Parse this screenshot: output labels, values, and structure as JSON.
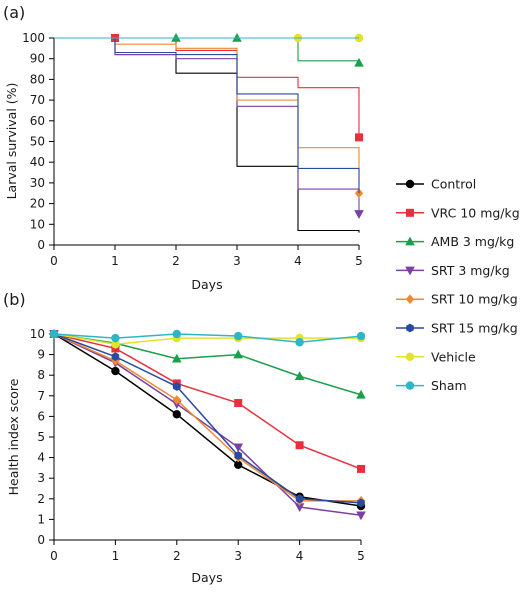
{
  "chart_data": [
    {
      "type": "line",
      "panel_label": "(a)",
      "xlabel": "Days",
      "ylabel": "Larval survival (%)",
      "xlim": [
        0,
        5
      ],
      "ylim": [
        0,
        100
      ],
      "xticks": [
        0,
        1,
        2,
        3,
        4,
        5
      ],
      "yticks": [
        0,
        10,
        20,
        30,
        40,
        50,
        60,
        70,
        80,
        90,
        100
      ],
      "step": true,
      "grid": false,
      "series": [
        {
          "name": "Control",
          "color": "#000000",
          "marker": "circle",
          "x": [
            0,
            1,
            2,
            3,
            4,
            5
          ],
          "y": [
            100,
            92,
            83,
            38,
            7,
            6
          ]
        },
        {
          "name": "VRC 10 mg/kg",
          "color": "#e8303c",
          "marker": "square",
          "x": [
            0,
            1,
            2,
            3,
            4,
            5
          ],
          "y": [
            100,
            100,
            94,
            81,
            76,
            52
          ]
        },
        {
          "name": "AMB 3 mg/kg",
          "color": "#1aa04a",
          "marker": "triangle-up",
          "x": [
            0,
            1,
            2,
            3,
            4,
            5
          ],
          "y": [
            100,
            100,
            100,
            100,
            89,
            88
          ]
        },
        {
          "name": "SRT 3 mg/kg",
          "color": "#7b3fa8",
          "marker": "triangle-down",
          "x": [
            0,
            1,
            2,
            3,
            4,
            5
          ],
          "y": [
            100,
            92,
            90,
            67,
            27,
            15
          ]
        },
        {
          "name": "SRT 10 mg/kg",
          "color": "#f08a30",
          "marker": "diamond",
          "x": [
            0,
            1,
            2,
            3,
            4,
            5
          ],
          "y": [
            100,
            97,
            95,
            70,
            47,
            25
          ]
        },
        {
          "name": "SRT 15 mg/kg",
          "color": "#2a4aa0",
          "marker": "hexagon",
          "x": [
            0,
            1,
            2,
            3,
            4,
            5
          ],
          "y": [
            100,
            93,
            92,
            73,
            37,
            25
          ]
        },
        {
          "name": "Vehicle",
          "color": "#e3e32a",
          "marker": "circle",
          "x": [
            0,
            1,
            2,
            3,
            4,
            5
          ],
          "y": [
            100,
            100,
            100,
            100,
            100,
            100
          ]
        },
        {
          "name": "Sham",
          "color": "#2fb5c8",
          "marker": "circle",
          "x": [
            0,
            1,
            2,
            3,
            4,
            5
          ],
          "y": [
            100,
            100,
            100,
            100,
            100,
            100
          ]
        }
      ]
    },
    {
      "type": "line",
      "panel_label": "(b)",
      "xlabel": "Days",
      "ylabel": "Health index score",
      "xlim": [
        0,
        5
      ],
      "ylim": [
        0,
        10
      ],
      "xticks": [
        0,
        1,
        2,
        3,
        4,
        5
      ],
      "yticks": [
        0,
        1,
        2,
        3,
        4,
        5,
        6,
        7,
        8,
        9,
        10
      ],
      "step": false,
      "grid": false,
      "series": [
        {
          "name": "Control",
          "color": "#000000",
          "marker": "circle",
          "x": [
            0,
            1,
            2,
            3,
            4,
            5
          ],
          "y": [
            10,
            8.2,
            6.1,
            3.65,
            2.1,
            1.65
          ]
        },
        {
          "name": "VRC 10 mg/kg",
          "color": "#e8303c",
          "marker": "square",
          "x": [
            0,
            1,
            2,
            3,
            4,
            5
          ],
          "y": [
            10,
            9.3,
            7.6,
            6.65,
            4.6,
            3.45
          ]
        },
        {
          "name": "AMB 3 mg/kg",
          "color": "#1aa04a",
          "marker": "triangle-up",
          "x": [
            0,
            1,
            2,
            3,
            4,
            5
          ],
          "y": [
            10,
            9.55,
            8.8,
            9.0,
            7.95,
            7.05
          ]
        },
        {
          "name": "SRT 3 mg/kg",
          "color": "#7b3fa8",
          "marker": "triangle-down",
          "x": [
            0,
            1,
            2,
            3,
            4,
            5
          ],
          "y": [
            10,
            8.6,
            6.6,
            4.5,
            1.6,
            1.2
          ]
        },
        {
          "name": "SRT 10 mg/kg",
          "color": "#f08a30",
          "marker": "diamond",
          "x": [
            0,
            1,
            2,
            3,
            4,
            5
          ],
          "y": [
            10,
            8.7,
            6.8,
            4.0,
            1.9,
            1.9
          ]
        },
        {
          "name": "SRT 15 mg/kg",
          "color": "#2a4aa0",
          "marker": "hexagon",
          "x": [
            0,
            1,
            2,
            3,
            4,
            5
          ],
          "y": [
            10,
            8.9,
            7.45,
            4.1,
            2.0,
            1.8
          ]
        },
        {
          "name": "Vehicle",
          "color": "#e3e32a",
          "marker": "circle",
          "x": [
            0,
            1,
            2,
            3,
            4,
            5
          ],
          "y": [
            10,
            9.5,
            9.8,
            9.8,
            9.8,
            9.8
          ]
        },
        {
          "name": "Sham",
          "color": "#2fb5c8",
          "marker": "circle",
          "x": [
            0,
            1,
            2,
            3,
            4,
            5
          ],
          "y": [
            10,
            9.8,
            10,
            9.9,
            9.6,
            9.9
          ]
        }
      ]
    }
  ],
  "legend": {
    "placement": "right",
    "items": [
      {
        "label": "Control",
        "color": "#000000",
        "marker": "circle"
      },
      {
        "label": "VRC 10 mg/kg",
        "color": "#e8303c",
        "marker": "square"
      },
      {
        "label": "AMB 3 mg/kg",
        "color": "#1aa04a",
        "marker": "triangle-up"
      },
      {
        "label": "SRT 3 mg/kg",
        "color": "#7b3fa8",
        "marker": "triangle-down"
      },
      {
        "label": "SRT 10 mg/kg",
        "color": "#f08a30",
        "marker": "diamond"
      },
      {
        "label": "SRT 15 mg/kg",
        "color": "#2a4aa0",
        "marker": "hexagon"
      },
      {
        "label": "Vehicle",
        "color": "#e3e32a",
        "marker": "circle"
      },
      {
        "label": "Sham",
        "color": "#2fb5c8",
        "marker": "circle"
      }
    ]
  }
}
